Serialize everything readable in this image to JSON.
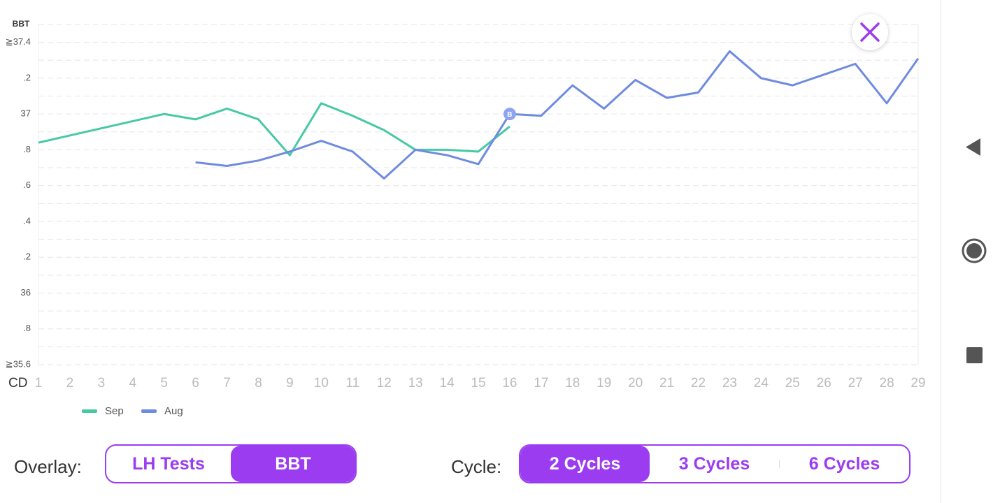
{
  "chart_data": {
    "type": "line",
    "ylabel": "BBT",
    "xlabel": "CD",
    "xlim": [
      1,
      29
    ],
    "xticks": [
      1,
      2,
      3,
      4,
      5,
      6,
      7,
      8,
      9,
      10,
      11,
      12,
      13,
      14,
      15,
      16,
      17,
      18,
      19,
      20,
      21,
      22,
      23,
      24,
      25,
      26,
      27,
      28,
      29
    ],
    "ylim": [
      35.6,
      37.5
    ],
    "yticks": [
      {
        "value": 35.6,
        "label": "≧35.6"
      },
      {
        "value": 35.8,
        "label": ".8"
      },
      36,
      {
        "value": 36.2,
        "label": ".2"
      },
      {
        "value": 36.4,
        "label": ".4"
      },
      {
        "value": 36.6,
        "label": ".6"
      },
      {
        "value": 36.8,
        "label": ".8"
      },
      37,
      {
        "value": 37.2,
        "label": ".2"
      },
      {
        "value": 37.4,
        "label": "≧37.4"
      }
    ],
    "minor_yticks": [
      35.7,
      35.9,
      36.1,
      36.3,
      36.5,
      36.7,
      36.9,
      37.1,
      37.3,
      37.5
    ],
    "grid": true,
    "series": [
      {
        "name": "Sep",
        "color": "#47c9a5",
        "x": [
          1,
          5,
          6,
          7,
          8,
          9,
          10,
          11,
          12,
          13,
          14,
          15,
          16
        ],
        "values": [
          36.84,
          37.0,
          36.97,
          37.03,
          36.97,
          36.77,
          37.06,
          36.99,
          36.91,
          36.8,
          36.8,
          36.79,
          36.93
        ]
      },
      {
        "name": "Aug",
        "color": "#6f8be0",
        "x": [
          6,
          7,
          8,
          9,
          10,
          11,
          12,
          13,
          14,
          15,
          16,
          17,
          18,
          19,
          20,
          21,
          22,
          23,
          24,
          25,
          26,
          27,
          28,
          29
        ],
        "values": [
          36.73,
          36.71,
          36.74,
          36.79,
          36.85,
          36.79,
          36.64,
          36.8,
          36.77,
          36.72,
          37.0,
          36.99,
          37.16,
          37.03,
          37.19,
          37.09,
          37.12,
          37.35,
          37.2,
          37.16,
          37.22,
          37.28,
          37.06,
          37.31
        ]
      }
    ],
    "marker": {
      "label": "B",
      "series": 1,
      "index": 10
    }
  },
  "controls": {
    "overlay_label": "Overlay:",
    "overlay_options": [
      "LH Tests",
      "BBT"
    ],
    "overlay_selected": 1,
    "cycle_label": "Cycle:",
    "cycle_options": [
      "2 Cycles",
      "3 Cycles",
      "6 Cycles"
    ],
    "cycle_selected": 0
  }
}
